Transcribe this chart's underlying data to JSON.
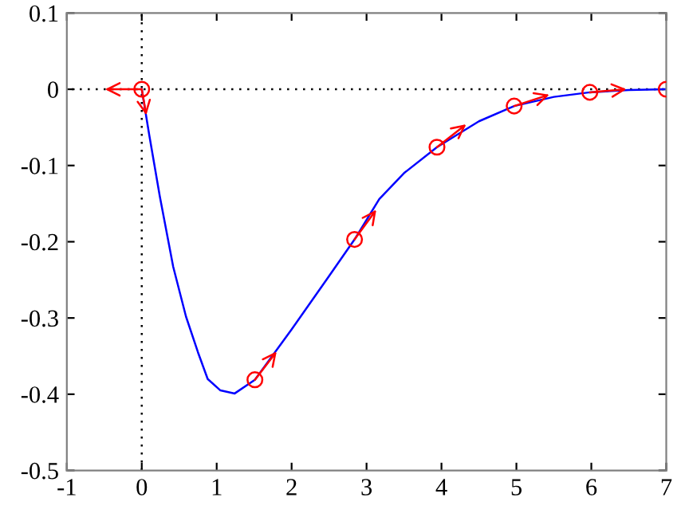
{
  "chart_data": {
    "type": "line",
    "xlim": [
      -1,
      7
    ],
    "ylim": [
      -0.5,
      0.1
    ],
    "xticks": [
      -1,
      0,
      1,
      2,
      3,
      4,
      5,
      6,
      7
    ],
    "yticks": [
      -0.5,
      -0.4,
      -0.3,
      -0.2,
      -0.1,
      0,
      0.1
    ],
    "grid": false,
    "legend": false,
    "ref_lines": [
      {
        "axis": "x",
        "value": 0,
        "color": "#000000",
        "line_style": "dotted"
      },
      {
        "axis": "y",
        "value": 0,
        "color": "#000000",
        "line_style": "dotted"
      }
    ],
    "series": [
      {
        "color": "#0000ff",
        "marker": "none",
        "line_style": "solid",
        "x": [
          0,
          0.05,
          0.1,
          0.24,
          0.42,
          0.59,
          0.75,
          0.88,
          1.05,
          1.24,
          1.51,
          2.0,
          2.5,
          2.84,
          3.17,
          3.5,
          3.94,
          4.5,
          4.97,
          5.5,
          5.98,
          6.5,
          7
        ],
        "values": [
          0,
          -0.03,
          -0.06,
          -0.14,
          -0.233,
          -0.298,
          -0.345,
          -0.38,
          -0.395,
          -0.399,
          -0.381,
          -0.315,
          -0.245,
          -0.197,
          -0.144,
          -0.11,
          -0.076,
          -0.042,
          -0.022,
          -0.01,
          -0.004,
          -0.001,
          0
        ]
      },
      {
        "type": "scatter",
        "color": "#ff0000",
        "marker": "circle",
        "x": [
          0,
          1.51,
          2.84,
          3.94,
          4.97,
          5.98,
          7
        ],
        "values": [
          0,
          -0.381,
          -0.197,
          -0.076,
          -0.022,
          -0.004,
          0
        ]
      }
    ]
  }
}
